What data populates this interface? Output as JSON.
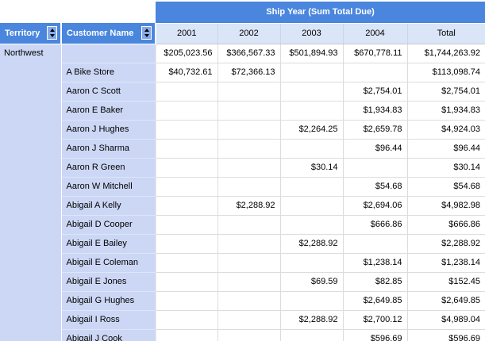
{
  "banner": {
    "title": "Ship Year (Sum Total Due)"
  },
  "columns": {
    "territory_label": "Territory",
    "customer_label": "Customer Name",
    "year_labels": [
      "2001",
      "2002",
      "2003",
      "2004",
      "Total"
    ]
  },
  "icons": {
    "sort_territory": "sort-up-down-icon",
    "sort_customer": "sort-up-down-icon"
  },
  "colors": {
    "banner-blue": "#4a86dd",
    "sort-btn-blue": "#85a9e8",
    "year-header-blue": "#dbe5f8",
    "row-header-blue": "#ccd7f5"
  },
  "rows": [
    {
      "territory": "Northwest",
      "customer": "",
      "values": [
        "$205,023.56",
        "$366,567.33",
        "$501,894.93",
        "$670,778.11",
        "$1,744,263.92"
      ]
    },
    {
      "customer": "A Bike Store",
      "values": [
        "$40,732.61",
        "$72,366.13",
        "",
        "",
        "$113,098.74"
      ]
    },
    {
      "customer": "Aaron C Scott",
      "values": [
        "",
        "",
        "",
        "$2,754.01",
        "$2,754.01"
      ]
    },
    {
      "customer": "Aaron E Baker",
      "values": [
        "",
        "",
        "",
        "$1,934.83",
        "$1,934.83"
      ]
    },
    {
      "customer": "Aaron J Hughes",
      "values": [
        "",
        "",
        "$2,264.25",
        "$2,659.78",
        "$4,924.03"
      ]
    },
    {
      "customer": "Aaron J Sharma",
      "values": [
        "",
        "",
        "",
        "$96.44",
        "$96.44"
      ]
    },
    {
      "customer": "Aaron R Green",
      "values": [
        "",
        "",
        "$30.14",
        "",
        "$30.14"
      ]
    },
    {
      "customer": "Aaron W Mitchell",
      "values": [
        "",
        "",
        "",
        "$54.68",
        "$54.68"
      ]
    },
    {
      "customer": "Abigail A Kelly",
      "values": [
        "",
        "$2,288.92",
        "",
        "$2,694.06",
        "$4,982.98"
      ]
    },
    {
      "customer": "Abigail D Cooper",
      "values": [
        "",
        "",
        "",
        "$666.86",
        "$666.86"
      ]
    },
    {
      "customer": "Abigail E Bailey",
      "values": [
        "",
        "",
        "$2,288.92",
        "",
        "$2,288.92"
      ]
    },
    {
      "customer": "Abigail E Coleman",
      "values": [
        "",
        "",
        "",
        "$1,238.14",
        "$1,238.14"
      ]
    },
    {
      "customer": "Abigail E Jones",
      "values": [
        "",
        "",
        "$69.59",
        "$82.85",
        "$152.45"
      ]
    },
    {
      "customer": "Abigail G Hughes",
      "values": [
        "",
        "",
        "",
        "$2,649.85",
        "$2,649.85"
      ]
    },
    {
      "customer": "Abigail I Ross",
      "values": [
        "",
        "",
        "$2,288.92",
        "$2,700.12",
        "$4,989.04"
      ]
    },
    {
      "customer": "Abigail J Cook",
      "values": [
        "",
        "",
        "",
        "$596.69",
        "$596.69"
      ]
    }
  ]
}
